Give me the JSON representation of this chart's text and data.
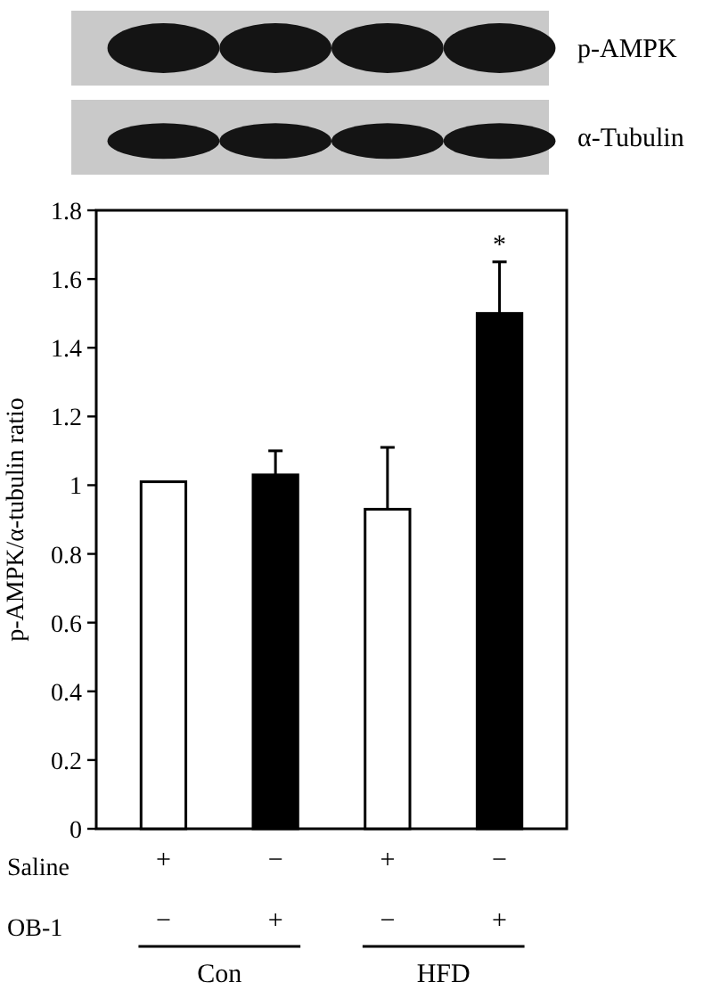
{
  "chart_data": {
    "type": "bar",
    "categories": [
      "+\n−",
      "−\n+",
      "+\n−",
      "−\n+"
    ],
    "values": [
      1.01,
      1.03,
      0.93,
      1.5
    ],
    "value_labels": [
      null,
      null,
      null,
      "*"
    ],
    "colors": [
      "#ffffff",
      "#000000",
      "#ffffff",
      "#000000"
    ],
    "errors": [
      null,
      [
        1.03,
        1.1
      ],
      [
        0.93,
        1.11
      ],
      [
        1.5,
        1.65
      ]
    ],
    "ylabel": "p-AMPK/α-tubulin ratio",
    "ylim": [
      0,
      1.8
    ],
    "yticks": [
      0,
      0.2,
      0.4,
      0.6,
      0.8,
      1,
      1.2,
      1.4,
      1.6,
      1.8
    ],
    "annotations": [
      "p-AMPK",
      "α-Tubulin",
      "Saline",
      "OB-1",
      "Con",
      "HFD"
    ]
  }
}
